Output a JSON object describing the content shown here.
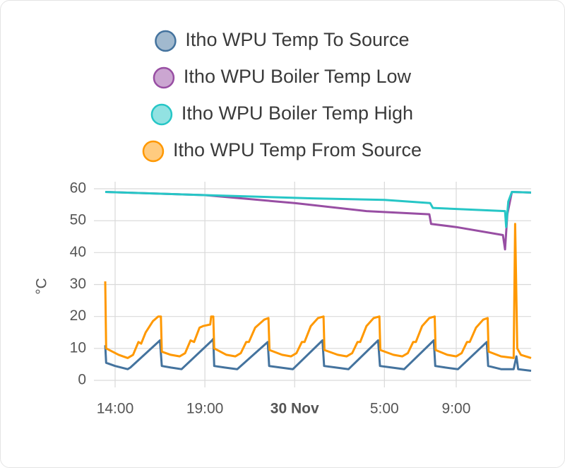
{
  "chart_data": {
    "type": "line",
    "y_label": "°C",
    "ylim": [
      0,
      60
    ],
    "yticks": [
      0,
      10,
      20,
      30,
      40,
      50,
      60
    ],
    "xlim": [
      12.82,
      37.17
    ],
    "xticks": [
      {
        "value": 14,
        "label": "14:00"
      },
      {
        "value": 19,
        "label": "19:00"
      },
      {
        "value": 24,
        "label": "30 Nov"
      },
      {
        "value": 29,
        "label": "5:00"
      },
      {
        "value": 33,
        "label": "9:00"
      }
    ],
    "grid": true,
    "series": [
      {
        "name": "Itho WPU Temp To Source",
        "color": "#44739e",
        "x": [
          13.45,
          13.5,
          14.0,
          14.7,
          14.85,
          16.5,
          16.6,
          17.1,
          17.7,
          19.4,
          19.47,
          19.52,
          20.1,
          20.8,
          22.5,
          22.58,
          23.2,
          23.9,
          25.55,
          25.64,
          26.3,
          27.0,
          28.65,
          28.75,
          29.4,
          30.1,
          31.75,
          31.83,
          32.4,
          33.1,
          34.7,
          34.78,
          35.5,
          36.2,
          36.35,
          36.45,
          37.17
        ],
        "values": [
          11,
          5.5,
          4.5,
          3.5,
          4,
          12.5,
          4.5,
          4,
          3.5,
          12.5,
          13,
          4.5,
          4,
          3.5,
          12,
          4.5,
          4,
          3.5,
          12.5,
          4.5,
          4,
          3.5,
          12.5,
          4.5,
          4,
          3.5,
          12.5,
          4.5,
          4,
          3.5,
          12,
          4.5,
          3.5,
          3.5,
          7.5,
          3.5,
          3
        ]
      },
      {
        "name": "Itho WPU Boiler Temp Low",
        "color": "#984ea3",
        "x": [
          13.45,
          19,
          24,
          28,
          31.5,
          31.6,
          33,
          35.6,
          35.72,
          35.85,
          36.1,
          37.17
        ],
        "values": [
          59,
          58,
          55.5,
          53,
          52,
          49,
          48,
          45.5,
          41,
          52,
          59,
          58.8
        ]
      },
      {
        "name": "Itho WPU Boiler Temp High",
        "color": "#26c6c6",
        "x": [
          13.45,
          19,
          25,
          29,
          31.55,
          31.7,
          35.72,
          35.78,
          35.9,
          36.1,
          37.17
        ],
        "values": [
          59,
          58,
          57,
          56.5,
          55.5,
          54,
          53,
          48,
          56,
          59,
          58.8
        ]
      },
      {
        "name": "Itho WPU Temp From Source",
        "color": "#ff9800",
        "x": [
          13.45,
          13.5,
          14.2,
          14.7,
          15.0,
          15.3,
          15.45,
          15.7,
          16.1,
          16.4,
          16.55,
          16.6,
          17.1,
          17.6,
          17.9,
          18.2,
          18.4,
          18.7,
          18.9,
          19.3,
          19.35,
          19.47,
          19.52,
          20.2,
          20.7,
          21.0,
          21.3,
          21.45,
          21.8,
          22.3,
          22.54,
          22.6,
          23.3,
          23.8,
          24.1,
          24.4,
          24.55,
          24.9,
          25.3,
          25.61,
          25.66,
          26.4,
          26.9,
          27.2,
          27.5,
          27.65,
          28.0,
          28.4,
          28.72,
          28.77,
          29.5,
          30.0,
          30.3,
          30.6,
          30.75,
          31.1,
          31.5,
          31.8,
          31.85,
          32.5,
          33.0,
          33.3,
          33.6,
          33.75,
          34.1,
          34.5,
          34.75,
          34.8,
          35.5,
          36.2,
          36.28,
          36.4,
          36.6,
          37.17
        ],
        "values": [
          31,
          10,
          8,
          7,
          8,
          12,
          11.5,
          15,
          18.5,
          20,
          20,
          9,
          8,
          7.5,
          8.5,
          12.5,
          12,
          16.5,
          17,
          17.5,
          20,
          20,
          10,
          8,
          7.5,
          8.5,
          12,
          12,
          16.5,
          19,
          19.5,
          9.5,
          8,
          7.5,
          8.5,
          12,
          12,
          17,
          19.5,
          20,
          9.5,
          8,
          7.5,
          8.5,
          12,
          12,
          17,
          19.5,
          20,
          9.5,
          8,
          7.5,
          8.5,
          12,
          12,
          17,
          19.5,
          20,
          9.5,
          8,
          7.5,
          8.5,
          12,
          12,
          16.5,
          19,
          19.5,
          9,
          7.5,
          7,
          49,
          10,
          8,
          7
        ]
      }
    ]
  }
}
